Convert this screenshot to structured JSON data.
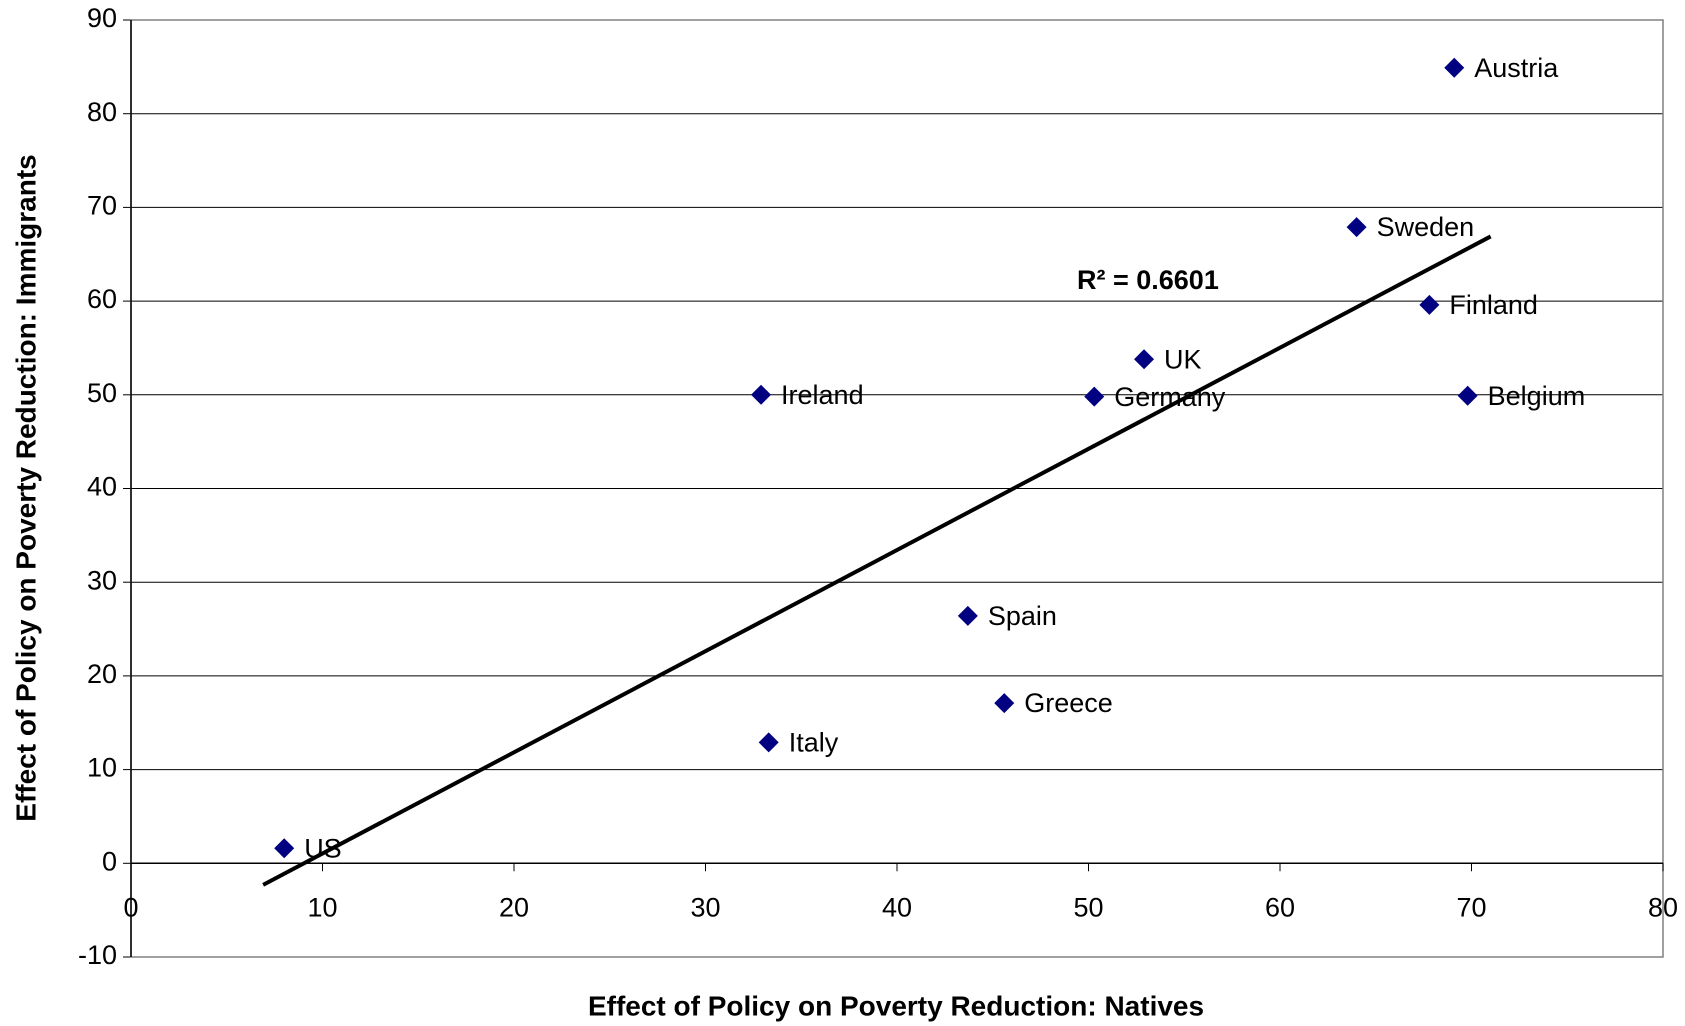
{
  "chart_data": {
    "type": "scatter",
    "xlabel": "Effect of Policy on Poverty Reduction: Natives",
    "ylabel": "Effect of Policy on Poverty Reduction: Immigrants",
    "labels": [
      "Austria",
      "Sweden",
      "Finland",
      "Belgium",
      "UK",
      "Germany",
      "Ireland",
      "Spain",
      "Greece",
      "Italy",
      "US"
    ],
    "x": [
      69.1,
      64.0,
      67.8,
      69.8,
      52.9,
      50.3,
      32.9,
      43.7,
      45.6,
      33.3,
      8.0
    ],
    "values": [
      84.9,
      67.9,
      59.6,
      49.9,
      53.8,
      49.8,
      50.0,
      26.4,
      17.1,
      12.9,
      1.6
    ],
    "color": "#000080",
    "trendline": {
      "x": [
        6.9,
        71.0
      ],
      "y": [
        -2.3,
        66.9
      ],
      "label": "R² = 0.6601",
      "color": "#000000"
    },
    "xlim": [
      0,
      80
    ],
    "xticks": [
      0,
      10,
      20,
      30,
      40,
      50,
      60,
      70,
      80
    ],
    "ylim": [
      -10,
      90
    ],
    "yticks": [
      -10,
      0,
      10,
      20,
      30,
      40,
      50,
      60,
      70,
      80,
      90
    ],
    "grid": true
  }
}
